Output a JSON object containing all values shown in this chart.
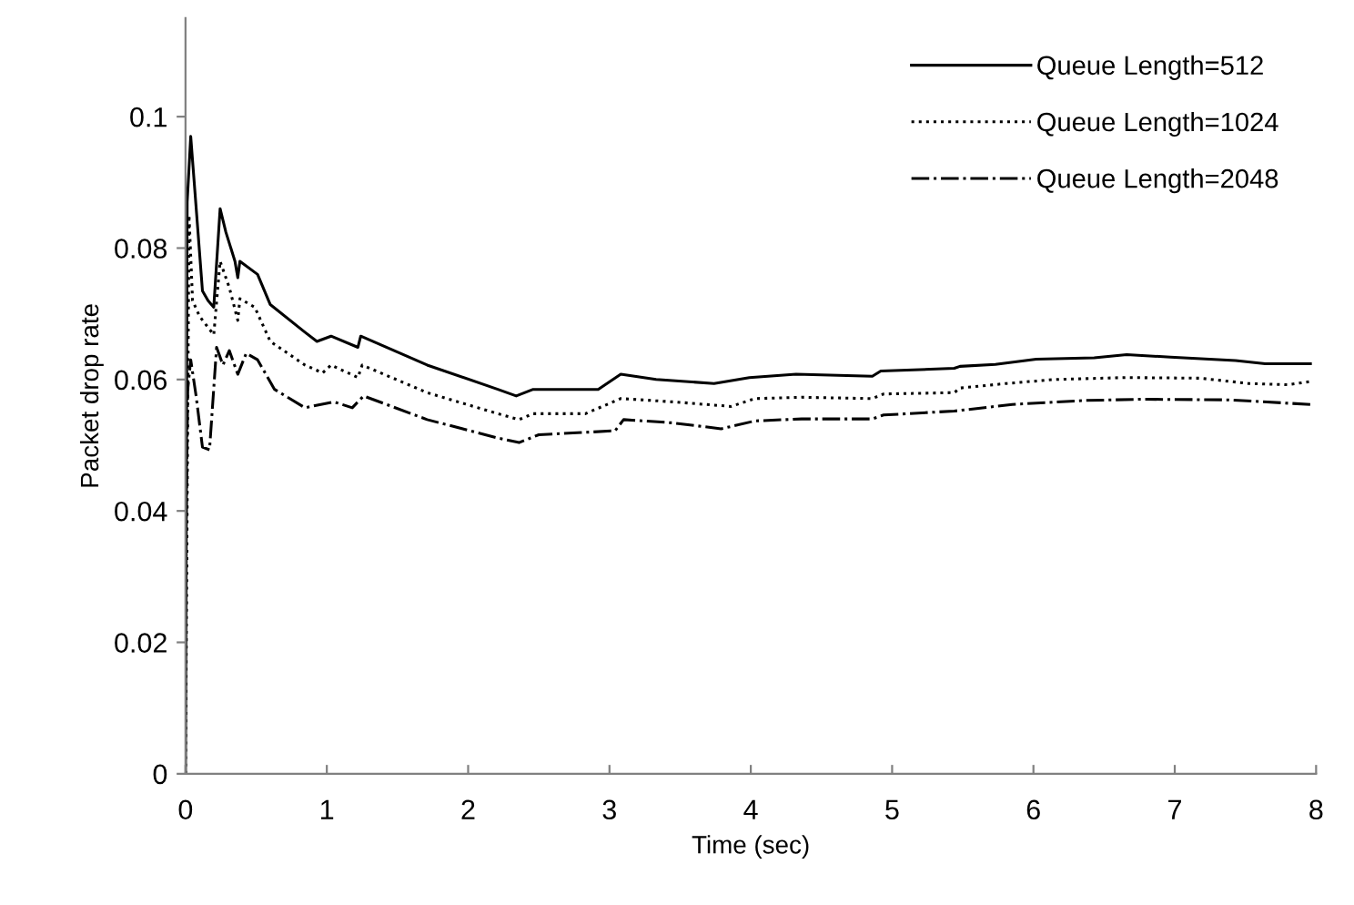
{
  "chart_data": {
    "type": "line",
    "xlabel": "Time (sec)",
    "ylabel": "Packet drop rate",
    "xlim": [
      0,
      8
    ],
    "ylim": [
      0,
      0.115
    ],
    "xticks": [
      0,
      1,
      2,
      3,
      4,
      5,
      6,
      7,
      8
    ],
    "yticks": [
      0,
      0.02,
      0.04,
      0.06,
      0.08,
      0.1
    ],
    "grid": false,
    "legend": "top right",
    "marker": "none",
    "series": [
      {
        "name": "Queue Length=512",
        "color": "#000000",
        "line_style": "solid",
        "x": [
          0,
          0.012,
          0.037,
          0.12,
          0.16,
          0.2,
          0.245,
          0.286,
          0.35,
          0.37,
          0.385,
          0.51,
          0.6,
          0.845,
          0.93,
          1.03,
          1.22,
          1.24,
          1.71,
          2.21,
          2.34,
          2.46,
          2.92,
          3.08,
          3.33,
          3.74,
          3.99,
          4.32,
          4.86,
          4.92,
          5.44,
          5.48,
          5.73,
          6.02,
          6.43,
          6.66,
          6.97,
          7.43,
          7.64,
          7.96
        ],
        "values": [
          0,
          0.087,
          0.097,
          0.0735,
          0.072,
          0.071,
          0.086,
          0.0824,
          0.078,
          0.0755,
          0.078,
          0.076,
          0.0714,
          0.0672,
          0.0658,
          0.0666,
          0.0649,
          0.0666,
          0.0622,
          0.0585,
          0.0575,
          0.0585,
          0.0585,
          0.0608,
          0.06,
          0.0594,
          0.0603,
          0.0608,
          0.0605,
          0.0613,
          0.0617,
          0.062,
          0.0623,
          0.0631,
          0.0633,
          0.0638,
          0.0634,
          0.0629,
          0.0624,
          0.0624
        ]
      },
      {
        "name": "Queue Length=1024",
        "color": "#000000",
        "line_style": "dotted",
        "x": [
          0,
          0.025,
          0.05,
          0.1,
          0.2,
          0.245,
          0.31,
          0.37,
          0.385,
          0.49,
          0.6,
          0.845,
          0.97,
          1.03,
          1.22,
          1.25,
          1.71,
          2.21,
          2.36,
          2.46,
          2.83,
          3.08,
          3.45,
          3.86,
          4.03,
          4.36,
          4.86,
          4.94,
          5.44,
          5.48,
          5.81,
          6.15,
          6.65,
          7.18,
          7.52,
          7.8,
          7.96
        ],
        "values": [
          0,
          0.085,
          0.072,
          0.0696,
          0.0668,
          0.078,
          0.074,
          0.069,
          0.0723,
          0.071,
          0.0658,
          0.0622,
          0.061,
          0.0622,
          0.0603,
          0.0622,
          0.058,
          0.0548,
          0.0539,
          0.0548,
          0.0548,
          0.0571,
          0.0566,
          0.0559,
          0.0571,
          0.0573,
          0.0571,
          0.0578,
          0.058,
          0.0587,
          0.0594,
          0.06,
          0.0603,
          0.0602,
          0.0594,
          0.0592,
          0.0597
        ]
      },
      {
        "name": "Queue Length=2048",
        "color": "#000000",
        "line_style": "dashdot",
        "x": [
          0,
          0.016,
          0.037,
          0.075,
          0.12,
          0.17,
          0.22,
          0.265,
          0.31,
          0.37,
          0.43,
          0.51,
          0.63,
          0.845,
          1.05,
          1.18,
          1.26,
          1.71,
          2.21,
          2.36,
          2.5,
          3.04,
          3.1,
          3.45,
          3.79,
          4.03,
          4.36,
          4.86,
          4.94,
          5.44,
          5.85,
          6.35,
          6.77,
          7.39,
          7.96
        ],
        "values": [
          0.03,
          0.0585,
          0.063,
          0.0575,
          0.0497,
          0.0493,
          0.0649,
          0.0622,
          0.0644,
          0.0608,
          0.064,
          0.063,
          0.0585,
          0.0557,
          0.0566,
          0.0557,
          0.0575,
          0.0539,
          0.0511,
          0.0504,
          0.0516,
          0.0522,
          0.0539,
          0.0534,
          0.0525,
          0.0537,
          0.054,
          0.054,
          0.0546,
          0.0552,
          0.0562,
          0.0568,
          0.057,
          0.0569,
          0.0562
        ]
      }
    ]
  }
}
